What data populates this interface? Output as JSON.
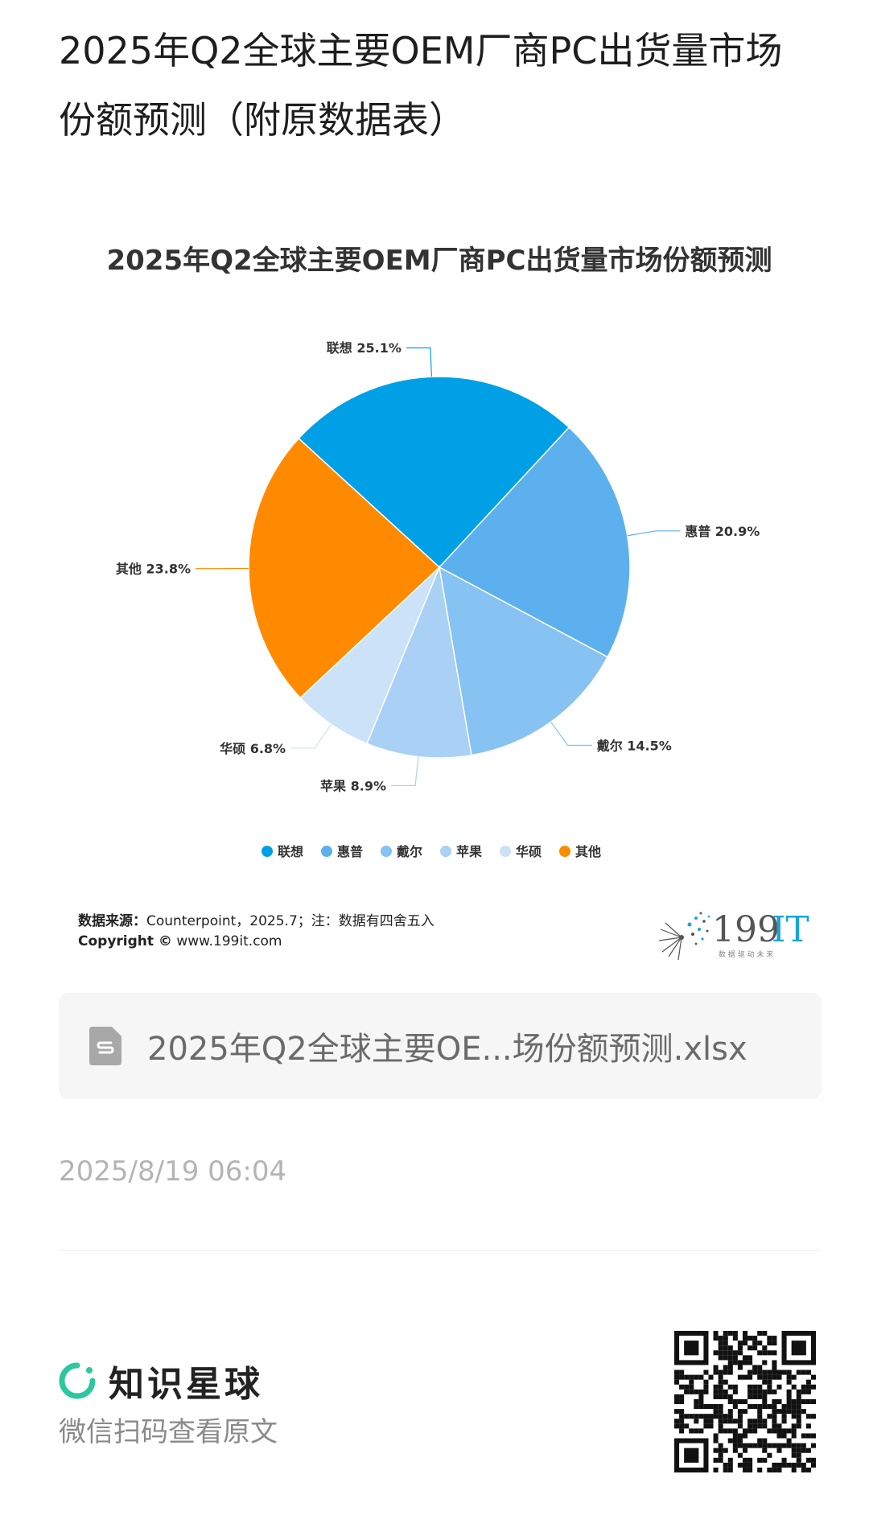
{
  "page": {
    "title": "2025年Q2全球主要OEM厂商PC出货量市场份额预测（附原数据表）"
  },
  "chart_data": {
    "type": "pie",
    "title": "2025年Q2全球主要OEM厂商PC出货量市场份额预测",
    "legend_position": "bottom",
    "slices": [
      {
        "name": "联想",
        "value": 25.1,
        "label": "联想 25.1%",
        "color": "#00a0e6"
      },
      {
        "name": "惠普",
        "value": 20.9,
        "label": "惠普 20.9%",
        "color": "#5cb0ee"
      },
      {
        "name": "戴尔",
        "value": 14.5,
        "label": "戴尔 14.5%",
        "color": "#86c2f2"
      },
      {
        "name": "苹果",
        "value": 8.9,
        "label": "苹果 8.9%",
        "color": "#a9d1f5"
      },
      {
        "name": "华硕",
        "value": 6.8,
        "label": "华硕 6.8%",
        "color": "#cbe2f8"
      },
      {
        "name": "其他",
        "value": 23.8,
        "label": "其他 23.8%",
        "color": "#ff8a00"
      }
    ]
  },
  "source": {
    "label": "数据来源：",
    "text": "Counterpoint，2025.7；注：数据有四舍五入",
    "copyright_label": "Copyright ©",
    "copyright_site": "www.199it.com"
  },
  "logo": {
    "text_num": "199",
    "text_it": "IT",
    "tagline": "数 据 驱 动 未 来"
  },
  "file": {
    "icon": "spreadsheet-file-icon",
    "name": "2025年Q2全球主要OE...场份额预测.xlsx"
  },
  "timestamp": "2025/8/19 06:04",
  "footer": {
    "brand": "知识星球",
    "hint": "微信扫码查看原文",
    "qr_icon": "qr-code-icon"
  }
}
